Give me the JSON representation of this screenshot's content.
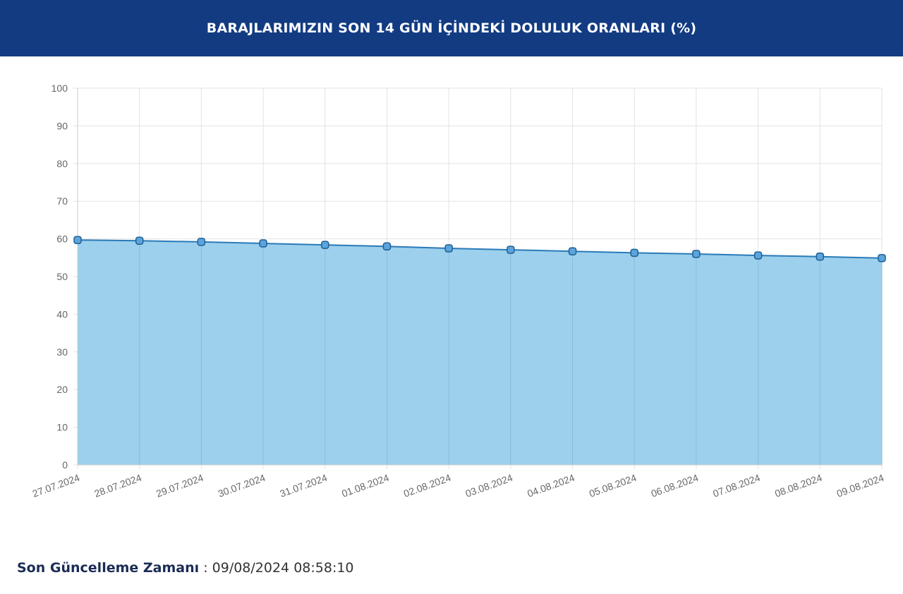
{
  "header": {
    "title": "BARAJLARIMIZIN SON 14 GÜN İÇİNDEKİ DOLULUK ORANLARI (%)"
  },
  "footer": {
    "label": "Son Güncelleme Zamanı",
    "separator": " : ",
    "value": "09/08/2024 08:58:10"
  },
  "colors": {
    "header": "#123b82",
    "fill": "#9cd0ec",
    "line": "#2a7ab8",
    "point": "#5ba5dc"
  },
  "chart_data": {
    "type": "area",
    "title": "BARAJLARIMIZIN SON 14 GÜN İÇİNDEKİ DOLULUK ORANLARI (%)",
    "xlabel": "",
    "ylabel": "",
    "ylim": [
      0,
      100
    ],
    "yticks": [
      "0",
      "10",
      "20",
      "30",
      "40",
      "50",
      "60",
      "70",
      "80",
      "90",
      "100"
    ],
    "grid": true,
    "legend": "none",
    "categories": [
      "27.07.2024",
      "28.07.2024",
      "29.07.2024",
      "30.07.2024",
      "31.07.2024",
      "01.08.2024",
      "02.08.2024",
      "03.08.2024",
      "04.08.2024",
      "05.08.2024",
      "06.08.2024",
      "07.08.2024",
      "08.08.2024",
      "09.08.2024"
    ],
    "values": [
      59.7,
      59.5,
      59.2,
      58.8,
      58.4,
      58.0,
      57.5,
      57.1,
      56.7,
      56.3,
      56.0,
      55.6,
      55.3,
      54.9
    ]
  }
}
